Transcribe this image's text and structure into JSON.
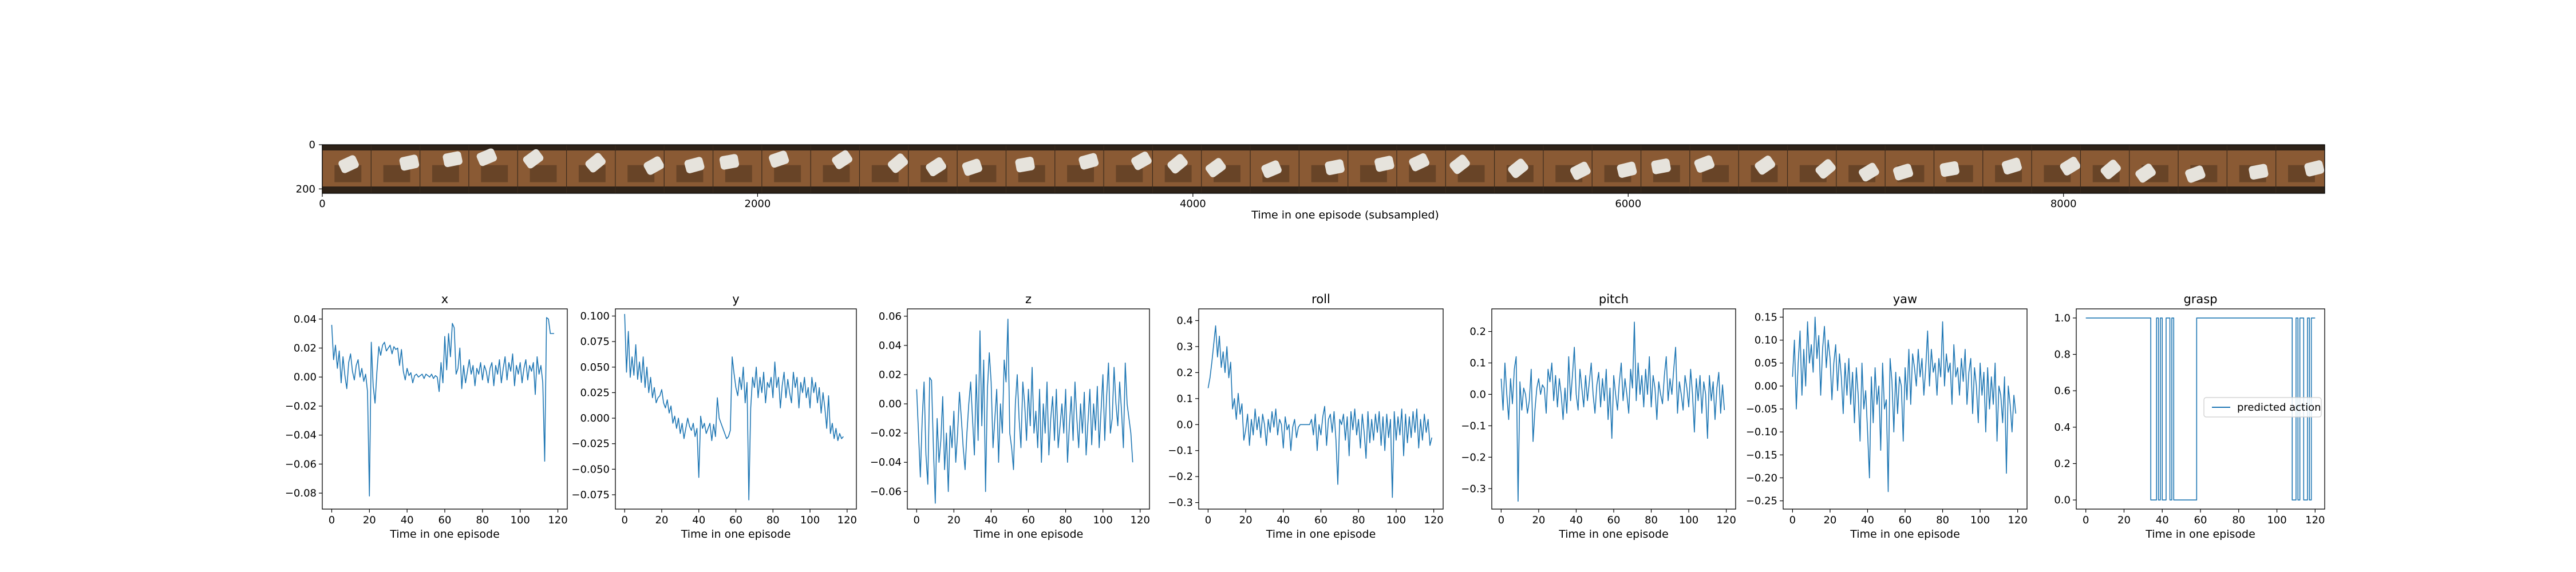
{
  "filmstrip": {
    "xlabel": "Time in one episode (subsampled)",
    "xticks": [
      0,
      2000,
      4000,
      6000,
      8000
    ],
    "yticks": [
      0,
      200
    ],
    "xlim": [
      0,
      9200
    ],
    "frame_count": 41,
    "colors": {
      "floor": "#8a5a34",
      "dark": "#2e2218",
      "arm": "#e6e3dc",
      "tray": "#5a3a22"
    }
  },
  "legend": {
    "label": "predicted action"
  },
  "line_color": "#1f77b4",
  "chart_data": [
    {
      "type": "line",
      "title": "x",
      "xlabel": "Time in one episode",
      "xlim": [
        -5,
        125
      ],
      "xticks": [
        0,
        20,
        40,
        60,
        80,
        100,
        120
      ],
      "ylim": [
        -0.091,
        0.047
      ],
      "yticks": [
        0.04,
        0.02,
        0.0,
        -0.02,
        -0.04,
        -0.06,
        -0.08
      ],
      "ytick_labels": [
        "0.04",
        "0.02",
        "0.00",
        "−0.02",
        "−0.04",
        "−0.06",
        "−0.08"
      ],
      "x_start": 0,
      "values": [
        0.036,
        0.012,
        0.022,
        0.006,
        0.018,
        -0.004,
        0.014,
        0.001,
        -0.008,
        0.01,
        0.016,
        0.004,
        -0.002,
        0.008,
        0.012,
        0.0,
        0.006,
        -0.003,
        0.002,
        -0.01,
        -0.082,
        0.024,
        -0.006,
        -0.018,
        0.004,
        0.021,
        0.015,
        0.022,
        0.024,
        0.018,
        0.02,
        0.022,
        0.016,
        0.021,
        0.019,
        0.02,
        0.008,
        0.019,
        0.004,
        -0.002,
        0.006,
        0.001,
        0.003,
        -0.004,
        0.001,
        0.002,
        0.0,
        0.001,
        0.002,
        -0.001,
        0.002,
        0.001,
        0.0,
        0.002,
        -0.001,
        0.001,
        0.0,
        -0.01,
        0.01,
        -0.004,
        0.028,
        0.005,
        0.03,
        0.014,
        0.037,
        0.034,
        0.002,
        0.006,
        0.02,
        -0.008,
        0.008,
        -0.004,
        0.004,
        0.012,
        0.002,
        0.008,
        -0.006,
        0.006,
        0.002,
        0.01,
        -0.002,
        0.008,
        0.004,
        -0.004,
        0.006,
        0.01,
        -0.006,
        0.008,
        0.002,
        0.012,
        -0.004,
        0.006,
        0.014,
        -0.002,
        0.01,
        0.004,
        0.016,
        -0.006,
        0.008,
        0.002,
        0.01,
        -0.004,
        0.006,
        0.012,
        -0.002,
        0.008,
        0.004,
        0.01,
        -0.012,
        0.014,
        0.002,
        0.008,
        -0.004,
        -0.058,
        0.041,
        0.04,
        0.03,
        0.03,
        0.03
      ]
    },
    {
      "type": "line",
      "title": "y",
      "xlabel": "Time in one episode",
      "xlim": [
        -5,
        125
      ],
      "xticks": [
        0,
        20,
        40,
        60,
        80,
        100,
        120
      ],
      "ylim": [
        -0.089,
        0.107
      ],
      "yticks": [
        0.1,
        0.075,
        0.05,
        0.025,
        0.0,
        -0.025,
        -0.05,
        -0.075
      ],
      "ytick_labels": [
        "0.100",
        "0.075",
        "0.050",
        "0.025",
        "0.000",
        "−0.025",
        "−0.050",
        "−0.075"
      ],
      "x_start": 0,
      "values": [
        0.102,
        0.045,
        0.085,
        0.04,
        0.06,
        0.042,
        0.072,
        0.038,
        0.055,
        0.035,
        0.06,
        0.03,
        0.05,
        0.025,
        0.04,
        0.02,
        0.03,
        0.015,
        0.02,
        0.022,
        0.028,
        0.015,
        0.01,
        0.018,
        0.005,
        0.012,
        -0.005,
        0.002,
        -0.01,
        0.0,
        -0.015,
        -0.005,
        -0.02,
        -0.01,
        0.0,
        -0.008,
        -0.012,
        -0.005,
        -0.018,
        -0.01,
        -0.058,
        0.002,
        -0.01,
        -0.005,
        -0.015,
        -0.01,
        -0.005,
        -0.022,
        -0.006,
        -0.018,
        0.02,
        0.0,
        -0.005,
        -0.01,
        -0.015,
        -0.02,
        -0.018,
        -0.012,
        0.06,
        0.044,
        0.03,
        0.022,
        0.04,
        0.028,
        0.05,
        0.015,
        0.035,
        -0.08,
        0.01,
        0.04,
        0.03,
        0.05,
        0.02,
        0.04,
        0.025,
        0.045,
        0.015,
        0.035,
        0.03,
        0.04,
        0.02,
        0.055,
        0.03,
        0.04,
        0.01,
        0.032,
        0.045,
        0.02,
        0.038,
        0.025,
        0.015,
        0.045,
        0.03,
        0.04,
        0.01,
        0.035,
        0.025,
        0.04,
        0.02,
        0.03,
        0.01,
        0.04,
        0.025,
        0.035,
        0.015,
        0.03,
        0.005,
        0.025,
        0.01,
        -0.01,
        0.022,
        -0.015,
        -0.005,
        -0.02,
        -0.01,
        -0.022,
        -0.015,
        -0.02,
        -0.018
      ]
    },
    {
      "type": "line",
      "title": "z",
      "xlabel": "Time in one episode",
      "xlim": [
        -5,
        125
      ],
      "xticks": [
        0,
        20,
        40,
        60,
        80,
        100,
        120
      ],
      "ylim": [
        -0.072,
        0.065
      ],
      "yticks": [
        0.06,
        0.04,
        0.02,
        0.0,
        -0.02,
        -0.04,
        -0.06
      ],
      "ytick_labels": [
        "0.06",
        "0.04",
        "0.02",
        "0.00",
        "−0.02",
        "−0.04",
        "−0.06"
      ],
      "x_start": 0,
      "values": [
        0.01,
        -0.02,
        -0.05,
        -0.01,
        0.015,
        -0.035,
        -0.055,
        0.018,
        0.016,
        -0.03,
        -0.068,
        -0.01,
        -0.04,
        -0.025,
        0.005,
        -0.045,
        -0.02,
        -0.06,
        -0.015,
        -0.03,
        -0.005,
        -0.04,
        -0.02,
        0.008,
        -0.01,
        -0.03,
        -0.045,
        -0.02,
        0.0,
        0.015,
        -0.01,
        -0.035,
        0.02,
        -0.025,
        0.05,
        -0.015,
        0.03,
        -0.06,
        0.01,
        0.035,
        0.015,
        -0.03,
        -0.01,
        0.01,
        -0.04,
        0.0,
        -0.02,
        0.03,
        0.015,
        0.058,
        -0.02,
        -0.03,
        -0.045,
        0.0,
        0.02,
        -0.01,
        -0.03,
        0.015,
        0.0,
        -0.025,
        0.01,
        -0.015,
        0.025,
        -0.02,
        -0.005,
        -0.03,
        0.01,
        -0.04,
        0.0,
        -0.02,
        0.015,
        -0.035,
        -0.01,
        0.005,
        -0.025,
        0.01,
        -0.03,
        -0.015,
        0.0,
        -0.02,
        0.01,
        -0.04,
        -0.015,
        0.005,
        -0.025,
        0.015,
        -0.01,
        -0.03,
        0.0,
        -0.02,
        0.008,
        -0.035,
        -0.012,
        0.01,
        -0.028,
        0.0,
        -0.018,
        0.012,
        -0.03,
        -0.005,
        0.02,
        -0.025,
        0.005,
        0.028,
        -0.02,
        -0.01,
        0.025,
        0.0,
        -0.015,
        0.015,
        -0.005,
        -0.03,
        0.028,
        0.0,
        -0.01,
        -0.02,
        -0.04
      ]
    },
    {
      "type": "line",
      "title": "roll",
      "xlabel": "Time in one episode",
      "xlim": [
        -5,
        125
      ],
      "xticks": [
        0,
        20,
        40,
        60,
        80,
        100,
        120
      ],
      "ylim": [
        -0.325,
        0.445
      ],
      "yticks": [
        0.4,
        0.3,
        0.2,
        0.1,
        0.0,
        -0.1,
        -0.2,
        -0.3
      ],
      "ytick_labels": [
        "0.4",
        "0.3",
        "0.2",
        "0.1",
        "0.0",
        "−0.1",
        "−0.2",
        "−0.3"
      ],
      "x_start": 0,
      "values": [
        0.14,
        0.18,
        0.24,
        0.31,
        0.38,
        0.26,
        0.34,
        0.22,
        0.28,
        0.2,
        0.3,
        0.18,
        0.24,
        0.06,
        0.1,
        0.02,
        0.12,
        0.04,
        0.08,
        -0.06,
        -0.02,
        0.04,
        -0.08,
        0.02,
        -0.04,
        0.06,
        -0.02,
        0.03,
        -0.05,
        0.04,
        0.0,
        -0.08,
        0.02,
        -0.03,
        0.05,
        -0.01,
        0.06,
        -0.04,
        0.02,
        0.0,
        -0.09,
        0.03,
        -0.02,
        0.0,
        -0.1,
        -0.01,
        0.02,
        -0.05,
        -0.01,
        0.0,
        0.0,
        0.0,
        0.0,
        0.0,
        0.0,
        0.02,
        -0.04,
        0.04,
        -0.1,
        0.0,
        -0.04,
        0.03,
        0.07,
        -0.08,
        0.02,
        0.04,
        -0.03,
        0.05,
        -0.06,
        -0.23,
        0.02,
        0.0,
        0.04,
        -0.06,
        0.03,
        -0.12,
        0.05,
        -0.02,
        0.06,
        -0.04,
        0.02,
        -0.09,
        0.04,
        -0.03,
        -0.13,
        0.05,
        -0.07,
        0.02,
        -0.06,
        0.04,
        -0.03,
        0.05,
        -0.08,
        0.03,
        -0.1,
        0.04,
        -0.05,
        0.02,
        -0.28,
        0.05,
        -0.06,
        0.03,
        -0.04,
        0.06,
        -0.12,
        0.04,
        -0.07,
        0.03,
        -0.05,
        0.05,
        -0.03,
        0.06,
        -0.09,
        0.02,
        -0.06,
        0.04,
        -0.03,
        0.02,
        -0.08,
        -0.05
      ]
    },
    {
      "type": "line",
      "title": "pitch",
      "xlabel": "Time in one episode",
      "xlim": [
        -5,
        125
      ],
      "xticks": [
        0,
        20,
        40,
        60,
        80,
        100,
        120
      ],
      "ylim": [
        -0.365,
        0.272
      ],
      "yticks": [
        0.2,
        0.1,
        0.0,
        -0.1,
        -0.2,
        -0.3
      ],
      "ytick_labels": [
        "0.2",
        "0.1",
        "0.0",
        "−0.1",
        "−0.2",
        "−0.3"
      ],
      "x_start": 0,
      "values": [
        0.05,
        -0.05,
        0.1,
        0.0,
        -0.08,
        0.05,
        -0.03,
        0.08,
        0.12,
        -0.34,
        0.04,
        -0.05,
        0.02,
        0.0,
        -0.06,
        -0.02,
        0.08,
        -0.15,
        -0.05,
        0.02,
        0.05,
        0.0,
        0.03,
        0.02,
        -0.06,
        0.08,
        0.04,
        0.1,
        -0.02,
        0.06,
        -0.04,
        0.05,
        0.0,
        -0.08,
        0.02,
        -0.06,
        0.12,
        -0.02,
        0.06,
        0.15,
        0.0,
        -0.05,
        0.08,
        0.02,
        -0.04,
        0.06,
        -0.02,
        0.04,
        0.1,
        0.0,
        -0.06,
        0.03,
        0.07,
        -0.04,
        0.05,
        -0.02,
        0.08,
        -0.08,
        0.02,
        -0.14,
        0.06,
        0.0,
        -0.05,
        0.04,
        0.1,
        -0.02,
        0.05,
        0.0,
        -0.06,
        0.08,
        0.02,
        0.23,
        -0.02,
        0.1,
        0.0,
        0.06,
        -0.04,
        0.08,
        0.0,
        0.12,
        -0.04,
        0.06,
        0.02,
        -0.08,
        0.04,
        0.0,
        -0.03,
        0.06,
        0.12,
        -0.02,
        0.05,
        0.0,
        0.08,
        0.15,
        -0.06,
        0.04,
        0.0,
        -0.05,
        0.06,
        0.02,
        -0.04,
        0.08,
        0.0,
        -0.12,
        0.05,
        -0.02,
        0.06,
        -0.06,
        0.04,
        0.0,
        -0.14,
        0.06,
        -0.02,
        0.04,
        -0.08,
        0.02,
        0.07,
        -0.06,
        0.03,
        -0.05
      ]
    },
    {
      "type": "line",
      "title": "yaw",
      "xlabel": "Time in one episode",
      "xlim": [
        -5,
        125
      ],
      "xticks": [
        0,
        20,
        40,
        60,
        80,
        100,
        120
      ],
      "ylim": [
        -0.268,
        0.168
      ],
      "yticks": [
        0.15,
        0.1,
        0.05,
        0.0,
        -0.05,
        -0.1,
        -0.15,
        -0.2,
        -0.25
      ],
      "ytick_labels": [
        "0.15",
        "0.10",
        "0.05",
        "0.00",
        "−0.05",
        "−0.10",
        "−0.15",
        "−0.20",
        "−0.25"
      ],
      "x_start": 0,
      "values": [
        0.02,
        0.1,
        -0.05,
        0.05,
        0.12,
        -0.02,
        0.08,
        0.0,
        0.14,
        0.05,
        0.09,
        0.03,
        0.15,
        0.06,
        0.11,
        -0.02,
        0.08,
        0.13,
        0.04,
        0.1,
        0.06,
        -0.03,
        0.05,
        0.09,
        -0.01,
        0.07,
        0.02,
        -0.06,
        0.05,
        -0.02,
        0.06,
        -0.04,
        0.03,
        -0.08,
        0.04,
        -0.02,
        -0.12,
        0.05,
        -0.05,
        -0.01,
        -0.1,
        -0.2,
        0.02,
        -0.08,
        0.04,
        -0.04,
        0.0,
        -0.14,
        0.05,
        -0.05,
        -0.03,
        -0.23,
        0.06,
        0.01,
        -0.1,
        0.03,
        -0.06,
        0.02,
        0.0,
        -0.12,
        0.04,
        -0.03,
        0.08,
        -0.04,
        0.07,
        0.04,
        0.0,
        0.08,
        0.02,
        0.06,
        -0.02,
        0.04,
        0.12,
        0.0,
        0.08,
        0.03,
        0.05,
        -0.02,
        0.06,
        0.02,
        0.14,
        0.0,
        0.07,
        0.03,
        0.05,
        -0.04,
        0.09,
        0.02,
        0.04,
        -0.02,
        0.06,
        0.01,
        0.08,
        -0.04,
        0.03,
        0.06,
        -0.06,
        0.04,
        0.0,
        -0.08,
        0.05,
        -0.02,
        0.03,
        -0.1,
        0.04,
        -0.05,
        0.02,
        -0.04,
        0.05,
        -0.12,
        0.0,
        -0.02,
        -0.08,
        0.02,
        -0.19,
        0.0,
        -0.04,
        -0.1,
        -0.02,
        -0.06
      ]
    },
    {
      "type": "line",
      "title": "grasp",
      "xlabel": "Time in one episode",
      "xlim": [
        -5,
        125
      ],
      "xticks": [
        0,
        20,
        40,
        60,
        80,
        100,
        120
      ],
      "ylim": [
        -0.05,
        1.05
      ],
      "yticks": [
        1.0,
        0.8,
        0.6,
        0.4,
        0.2,
        0.0
      ],
      "ytick_labels": [
        "1.0",
        "0.8",
        "0.6",
        "0.4",
        "0.2",
        "0.0"
      ],
      "x_start": 0,
      "series_name": "predicted action",
      "values": [
        1,
        1,
        1,
        1,
        1,
        1,
        1,
        1,
        1,
        1,
        1,
        1,
        1,
        1,
        1,
        1,
        1,
        1,
        1,
        1,
        1,
        1,
        1,
        1,
        1,
        1,
        1,
        1,
        1,
        1,
        1,
        1,
        1,
        1,
        0,
        0,
        0,
        1,
        0,
        1,
        0,
        0,
        1,
        1,
        0,
        1,
        0,
        0,
        0,
        0,
        0,
        0,
        0,
        0,
        0,
        0,
        0,
        0,
        1,
        1,
        1,
        1,
        1,
        1,
        1,
        1,
        1,
        1,
        1,
        1,
        1,
        1,
        1,
        1,
        1,
        1,
        1,
        1,
        1,
        1,
        1,
        1,
        1,
        1,
        1,
        1,
        1,
        1,
        1,
        1,
        1,
        1,
        1,
        1,
        1,
        1,
        1,
        1,
        1,
        1,
        1,
        1,
        1,
        1,
        1,
        1,
        1,
        1,
        0,
        0,
        1,
        0,
        1,
        1,
        0,
        0,
        1,
        0,
        1,
        1,
        1
      ]
    }
  ]
}
